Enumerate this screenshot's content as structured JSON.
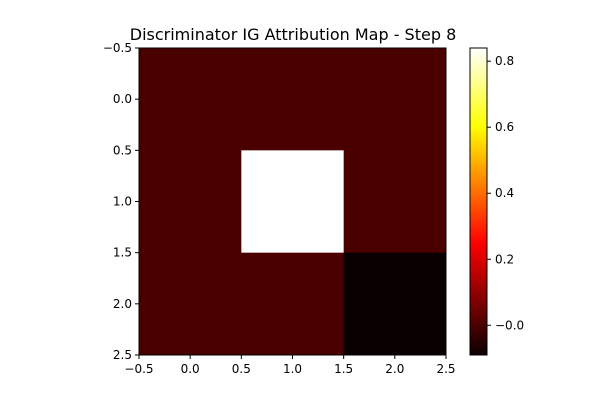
{
  "chart_data": {
    "type": "heatmap",
    "title": "Discriminator IG Attribution Map - Step 8",
    "xlabel": "",
    "ylabel": "",
    "colormap": "hot",
    "x_ticks": [
      "−0.5",
      "0.0",
      "0.5",
      "1.0",
      "1.5",
      "2.0",
      "2.5"
    ],
    "y_ticks": [
      "−0.5",
      "0.0",
      "0.5",
      "1.0",
      "1.5",
      "2.0",
      "2.5"
    ],
    "x_range": [
      -0.5,
      2.5
    ],
    "y_range": [
      -0.5,
      2.5
    ],
    "y_inverted": true,
    "grid": false,
    "values": [
      [
        0.0,
        0.0,
        0.0
      ],
      [
        0.0,
        0.84,
        0.0
      ],
      [
        0.0,
        0.0,
        -0.09
      ]
    ],
    "colorbar": {
      "vmin": -0.09,
      "vmax": 0.84,
      "ticks": [
        "−0.0",
        "0.2",
        "0.4",
        "0.6",
        "0.8"
      ],
      "tick_values": [
        0.0,
        0.2,
        0.4,
        0.6,
        0.8
      ]
    }
  }
}
